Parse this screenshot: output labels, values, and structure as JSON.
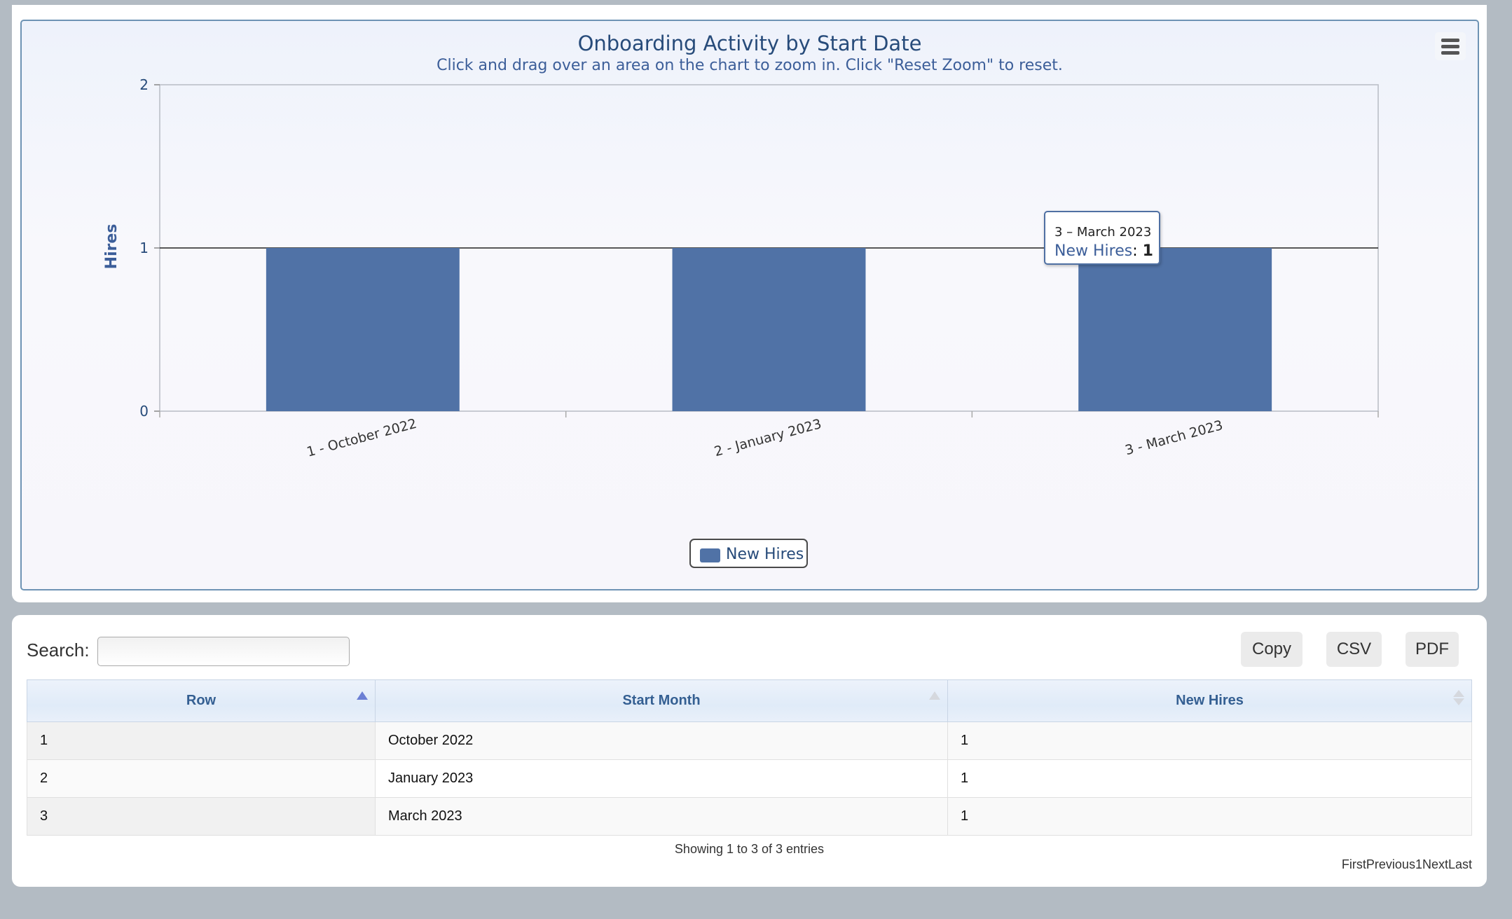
{
  "chart": {
    "title": "Onboarding Activity by Start Date",
    "subtitle": "Click and drag over an area on the chart to zoom in. Click \"Reset Zoom\" to reset.",
    "menu_icon": "hamburger-menu-icon",
    "legend_label": "New Hires",
    "tooltip": {
      "title": "3 – March 2023",
      "series": "New Hires",
      "value": "1"
    },
    "colors": {
      "bar": "#5072a6",
      "title": "#274b7a",
      "axis_label": "#3c5e99"
    }
  },
  "chart_data": {
    "type": "bar",
    "title": "Onboarding Activity by Start Date",
    "subtitle": "Click and drag over an area on the chart to zoom in. Click \"Reset Zoom\" to reset.",
    "categories": [
      "1 - October 2022",
      "2 - January 2023",
      "3 - March 2023"
    ],
    "series": [
      {
        "name": "New Hires",
        "values": [
          1,
          1,
          1
        ]
      }
    ],
    "xlabel": "",
    "ylabel": "Hires",
    "ylim": [
      0,
      2
    ],
    "yticks": [
      "0",
      "1",
      "2"
    ],
    "legend": "bottom-center",
    "grid": true
  },
  "table": {
    "search_label": "Search:",
    "search_value": "",
    "buttons": {
      "copy": "Copy",
      "csv": "CSV",
      "pdf": "PDF"
    },
    "columns": [
      "Row",
      "Start Month",
      "New Hires"
    ],
    "rows": [
      [
        "1",
        "October 2022",
        "1"
      ],
      [
        "2",
        "January 2023",
        "1"
      ],
      [
        "3",
        "March 2023",
        "1"
      ]
    ],
    "info": "Showing 1 to 3 of 3 entries",
    "pagination": {
      "first": "First",
      "previous": "Previous",
      "page": "1",
      "next": "Next",
      "last": "Last"
    }
  }
}
